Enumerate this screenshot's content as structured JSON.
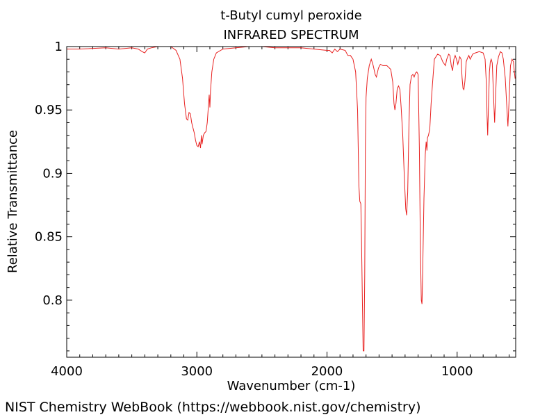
{
  "chart_data": {
    "type": "line",
    "title": "t-Butyl cumyl peroxide",
    "subtitle": "INFRARED SPECTRUM",
    "xlabel": "Wavenumber (cm-1)",
    "ylabel": "Relative Transmittance",
    "xlim": [
      4000,
      550
    ],
    "ylim": [
      0.755,
      1.0
    ],
    "x_reversed": true,
    "grid": false,
    "x_ticks": [
      {
        "value": 4000,
        "label": "4000"
      },
      {
        "value": 3000,
        "label": "3000"
      },
      {
        "value": 2000,
        "label": "2000"
      },
      {
        "value": 1000,
        "label": "1000"
      }
    ],
    "y_ticks": [
      {
        "value": 1.0,
        "label": "1"
      },
      {
        "value": 0.95,
        "label": "0.95"
      },
      {
        "value": 0.9,
        "label": "0.9"
      },
      {
        "value": 0.85,
        "label": "0.85"
      },
      {
        "value": 0.8,
        "label": "0.8"
      }
    ],
    "series": [
      {
        "color": "#e8201f",
        "points": [
          [
            4000,
            0.998
          ],
          [
            3900,
            0.998
          ],
          [
            3700,
            0.999
          ],
          [
            3600,
            0.998
          ],
          [
            3500,
            0.999
          ],
          [
            3450,
            0.998
          ],
          [
            3420,
            0.996
          ],
          [
            3400,
            0.995
          ],
          [
            3380,
            0.998
          ],
          [
            3350,
            0.999
          ],
          [
            3300,
            1.0
          ],
          [
            3200,
            1.0
          ],
          [
            3160,
            0.997
          ],
          [
            3130,
            0.99
          ],
          [
            3110,
            0.975
          ],
          [
            3095,
            0.955
          ],
          [
            3080,
            0.943
          ],
          [
            3070,
            0.942
          ],
          [
            3060,
            0.948
          ],
          [
            3050,
            0.947
          ],
          [
            3040,
            0.94
          ],
          [
            3030,
            0.936
          ],
          [
            3020,
            0.932
          ],
          [
            3010,
            0.926
          ],
          [
            3000,
            0.922
          ],
          [
            2990,
            0.921
          ],
          [
            2980,
            0.925
          ],
          [
            2972,
            0.92
          ],
          [
            2965,
            0.93
          ],
          [
            2960,
            0.923
          ],
          [
            2950,
            0.93
          ],
          [
            2940,
            0.932
          ],
          [
            2930,
            0.933
          ],
          [
            2920,
            0.94
          ],
          [
            2910,
            0.955
          ],
          [
            2905,
            0.962
          ],
          [
            2900,
            0.952
          ],
          [
            2895,
            0.965
          ],
          [
            2885,
            0.98
          ],
          [
            2870,
            0.99
          ],
          [
            2850,
            0.995
          ],
          [
            2800,
            0.998
          ],
          [
            2700,
            0.999
          ],
          [
            2600,
            1.0
          ],
          [
            2500,
            1.0
          ],
          [
            2400,
            0.999
          ],
          [
            2300,
            0.999
          ],
          [
            2200,
            0.999
          ],
          [
            2100,
            0.998
          ],
          [
            2000,
            0.997
          ],
          [
            1980,
            0.997
          ],
          [
            1960,
            0.995
          ],
          [
            1940,
            0.998
          ],
          [
            1920,
            0.996
          ],
          [
            1900,
            0.998
          ],
          [
            1860,
            0.997
          ],
          [
            1840,
            0.993
          ],
          [
            1820,
            0.993
          ],
          [
            1800,
            0.99
          ],
          [
            1780,
            0.98
          ],
          [
            1765,
            0.95
          ],
          [
            1755,
            0.89
          ],
          [
            1748,
            0.878
          ],
          [
            1740,
            0.876
          ],
          [
            1735,
            0.85
          ],
          [
            1728,
            0.8
          ],
          [
            1722,
            0.76
          ],
          [
            1716,
            0.76
          ],
          [
            1710,
            0.82
          ],
          [
            1705,
            0.92
          ],
          [
            1700,
            0.96
          ],
          [
            1690,
            0.975
          ],
          [
            1675,
            0.985
          ],
          [
            1660,
            0.99
          ],
          [
            1645,
            0.985
          ],
          [
            1630,
            0.978
          ],
          [
            1620,
            0.976
          ],
          [
            1605,
            0.983
          ],
          [
            1590,
            0.986
          ],
          [
            1570,
            0.985
          ],
          [
            1540,
            0.985
          ],
          [
            1510,
            0.982
          ],
          [
            1495,
            0.972
          ],
          [
            1485,
            0.955
          ],
          [
            1478,
            0.95
          ],
          [
            1470,
            0.955
          ],
          [
            1460,
            0.967
          ],
          [
            1450,
            0.969
          ],
          [
            1440,
            0.966
          ],
          [
            1430,
            0.952
          ],
          [
            1418,
            0.93
          ],
          [
            1405,
            0.895
          ],
          [
            1395,
            0.872
          ],
          [
            1388,
            0.867
          ],
          [
            1380,
            0.885
          ],
          [
            1370,
            0.94
          ],
          [
            1362,
            0.97
          ],
          [
            1350,
            0.977
          ],
          [
            1340,
            0.978
          ],
          [
            1330,
            0.976
          ],
          [
            1320,
            0.979
          ],
          [
            1310,
            0.98
          ],
          [
            1300,
            0.978
          ],
          [
            1290,
            0.92
          ],
          [
            1282,
            0.84
          ],
          [
            1275,
            0.8
          ],
          [
            1270,
            0.797
          ],
          [
            1265,
            0.82
          ],
          [
            1255,
            0.88
          ],
          [
            1245,
            0.915
          ],
          [
            1238,
            0.925
          ],
          [
            1232,
            0.918
          ],
          [
            1228,
            0.928
          ],
          [
            1220,
            0.93
          ],
          [
            1210,
            0.935
          ],
          [
            1200,
            0.955
          ],
          [
            1190,
            0.97
          ],
          [
            1175,
            0.99
          ],
          [
            1150,
            0.994
          ],
          [
            1130,
            0.993
          ],
          [
            1110,
            0.988
          ],
          [
            1090,
            0.985
          ],
          [
            1080,
            0.99
          ],
          [
            1065,
            0.994
          ],
          [
            1055,
            0.993
          ],
          [
            1045,
            0.985
          ],
          [
            1035,
            0.981
          ],
          [
            1025,
            0.99
          ],
          [
            1015,
            0.993
          ],
          [
            1005,
            0.99
          ],
          [
            995,
            0.986
          ],
          [
            980,
            0.992
          ],
          [
            970,
            0.99
          ],
          [
            962,
            0.975
          ],
          [
            955,
            0.967
          ],
          [
            948,
            0.966
          ],
          [
            940,
            0.973
          ],
          [
            930,
            0.988
          ],
          [
            920,
            0.991
          ],
          [
            910,
            0.993
          ],
          [
            900,
            0.99
          ],
          [
            880,
            0.994
          ],
          [
            860,
            0.995
          ],
          [
            830,
            0.996
          ],
          [
            800,
            0.995
          ],
          [
            785,
            0.99
          ],
          [
            775,
            0.97
          ],
          [
            770,
            0.945
          ],
          [
            765,
            0.93
          ],
          [
            760,
            0.95
          ],
          [
            752,
            0.98
          ],
          [
            745,
            0.988
          ],
          [
            738,
            0.99
          ],
          [
            730,
            0.987
          ],
          [
            720,
            0.96
          ],
          [
            712,
            0.94
          ],
          [
            705,
            0.96
          ],
          [
            695,
            0.985
          ],
          [
            682,
            0.992
          ],
          [
            668,
            0.996
          ],
          [
            655,
            0.995
          ],
          [
            645,
            0.99
          ],
          [
            630,
            0.975
          ],
          [
            618,
            0.952
          ],
          [
            610,
            0.937
          ],
          [
            602,
            0.955
          ],
          [
            590,
            0.985
          ],
          [
            578,
            0.99
          ],
          [
            567,
            0.988
          ],
          [
            560,
            0.98
          ],
          [
            555,
            0.975
          ],
          [
            550,
            0.975
          ]
        ]
      }
    ]
  },
  "footer": {
    "credit": "NIST Chemistry WebBook (https://webbook.nist.gov/chemistry)"
  }
}
